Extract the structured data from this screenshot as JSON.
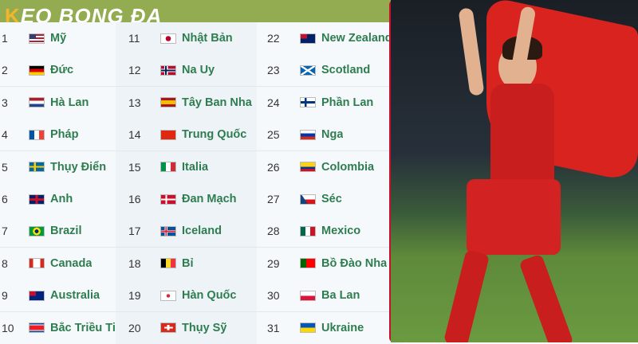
{
  "header": {
    "logo_text": "KEO BONG DA"
  },
  "columns": [
    [
      {
        "rank": "1",
        "name": "Mỹ",
        "flag": "usa"
      },
      {
        "rank": "2",
        "name": "Đức",
        "flag": "germany"
      },
      {
        "rank": "3",
        "name": "Hà Lan",
        "flag": "netherlands"
      },
      {
        "rank": "4",
        "name": "Pháp",
        "flag": "france"
      },
      {
        "rank": "5",
        "name": "Thụy Điển",
        "flag": "sweden"
      },
      {
        "rank": "6",
        "name": "Anh",
        "flag": "england"
      },
      {
        "rank": "7",
        "name": "Brazil",
        "flag": "brazil"
      },
      {
        "rank": "8",
        "name": "Canada",
        "flag": "canada"
      },
      {
        "rank": "9",
        "name": "Australia",
        "flag": "australia"
      },
      {
        "rank": "10",
        "name": "Bắc Triều Tiên",
        "flag": "north-korea"
      }
    ],
    [
      {
        "rank": "11",
        "name": "Nhật Bản",
        "flag": "japan"
      },
      {
        "rank": "12",
        "name": "Na Uy",
        "flag": "norway"
      },
      {
        "rank": "13",
        "name": "Tây Ban Nha",
        "flag": "spain"
      },
      {
        "rank": "14",
        "name": "Trung Quốc",
        "flag": "china"
      },
      {
        "rank": "15",
        "name": "Italia",
        "flag": "italy"
      },
      {
        "rank": "16",
        "name": "Đan Mạch",
        "flag": "denmark"
      },
      {
        "rank": "17",
        "name": "Iceland",
        "flag": "iceland"
      },
      {
        "rank": "18",
        "name": "Bỉ",
        "flag": "belgium"
      },
      {
        "rank": "19",
        "name": "Hàn Quốc",
        "flag": "south-korea"
      },
      {
        "rank": "20",
        "name": "Thụy Sỹ",
        "flag": "switzerland"
      }
    ],
    [
      {
        "rank": "22",
        "name": "New Zealand",
        "flag": "new-zealand"
      },
      {
        "rank": "23",
        "name": "Scotland",
        "flag": "scotland"
      },
      {
        "rank": "24",
        "name": "Phần Lan",
        "flag": "finland"
      },
      {
        "rank": "25",
        "name": "Nga",
        "flag": "russia"
      },
      {
        "rank": "26",
        "name": "Colombia",
        "flag": "colombia"
      },
      {
        "rank": "27",
        "name": "Séc",
        "flag": "czech"
      },
      {
        "rank": "28",
        "name": "Mexico",
        "flag": "mexico"
      },
      {
        "rank": "29",
        "name": "Bồ Đào Nha",
        "flag": "portugal"
      },
      {
        "rank": "30",
        "name": "Ba Lan",
        "flag": "poland"
      },
      {
        "rank": "31",
        "name": "Ukraine",
        "flag": "ukraine"
      }
    ]
  ],
  "colors": {
    "header": "#93ac52",
    "name": "#2e7d4f",
    "border": "#c8102e"
  }
}
